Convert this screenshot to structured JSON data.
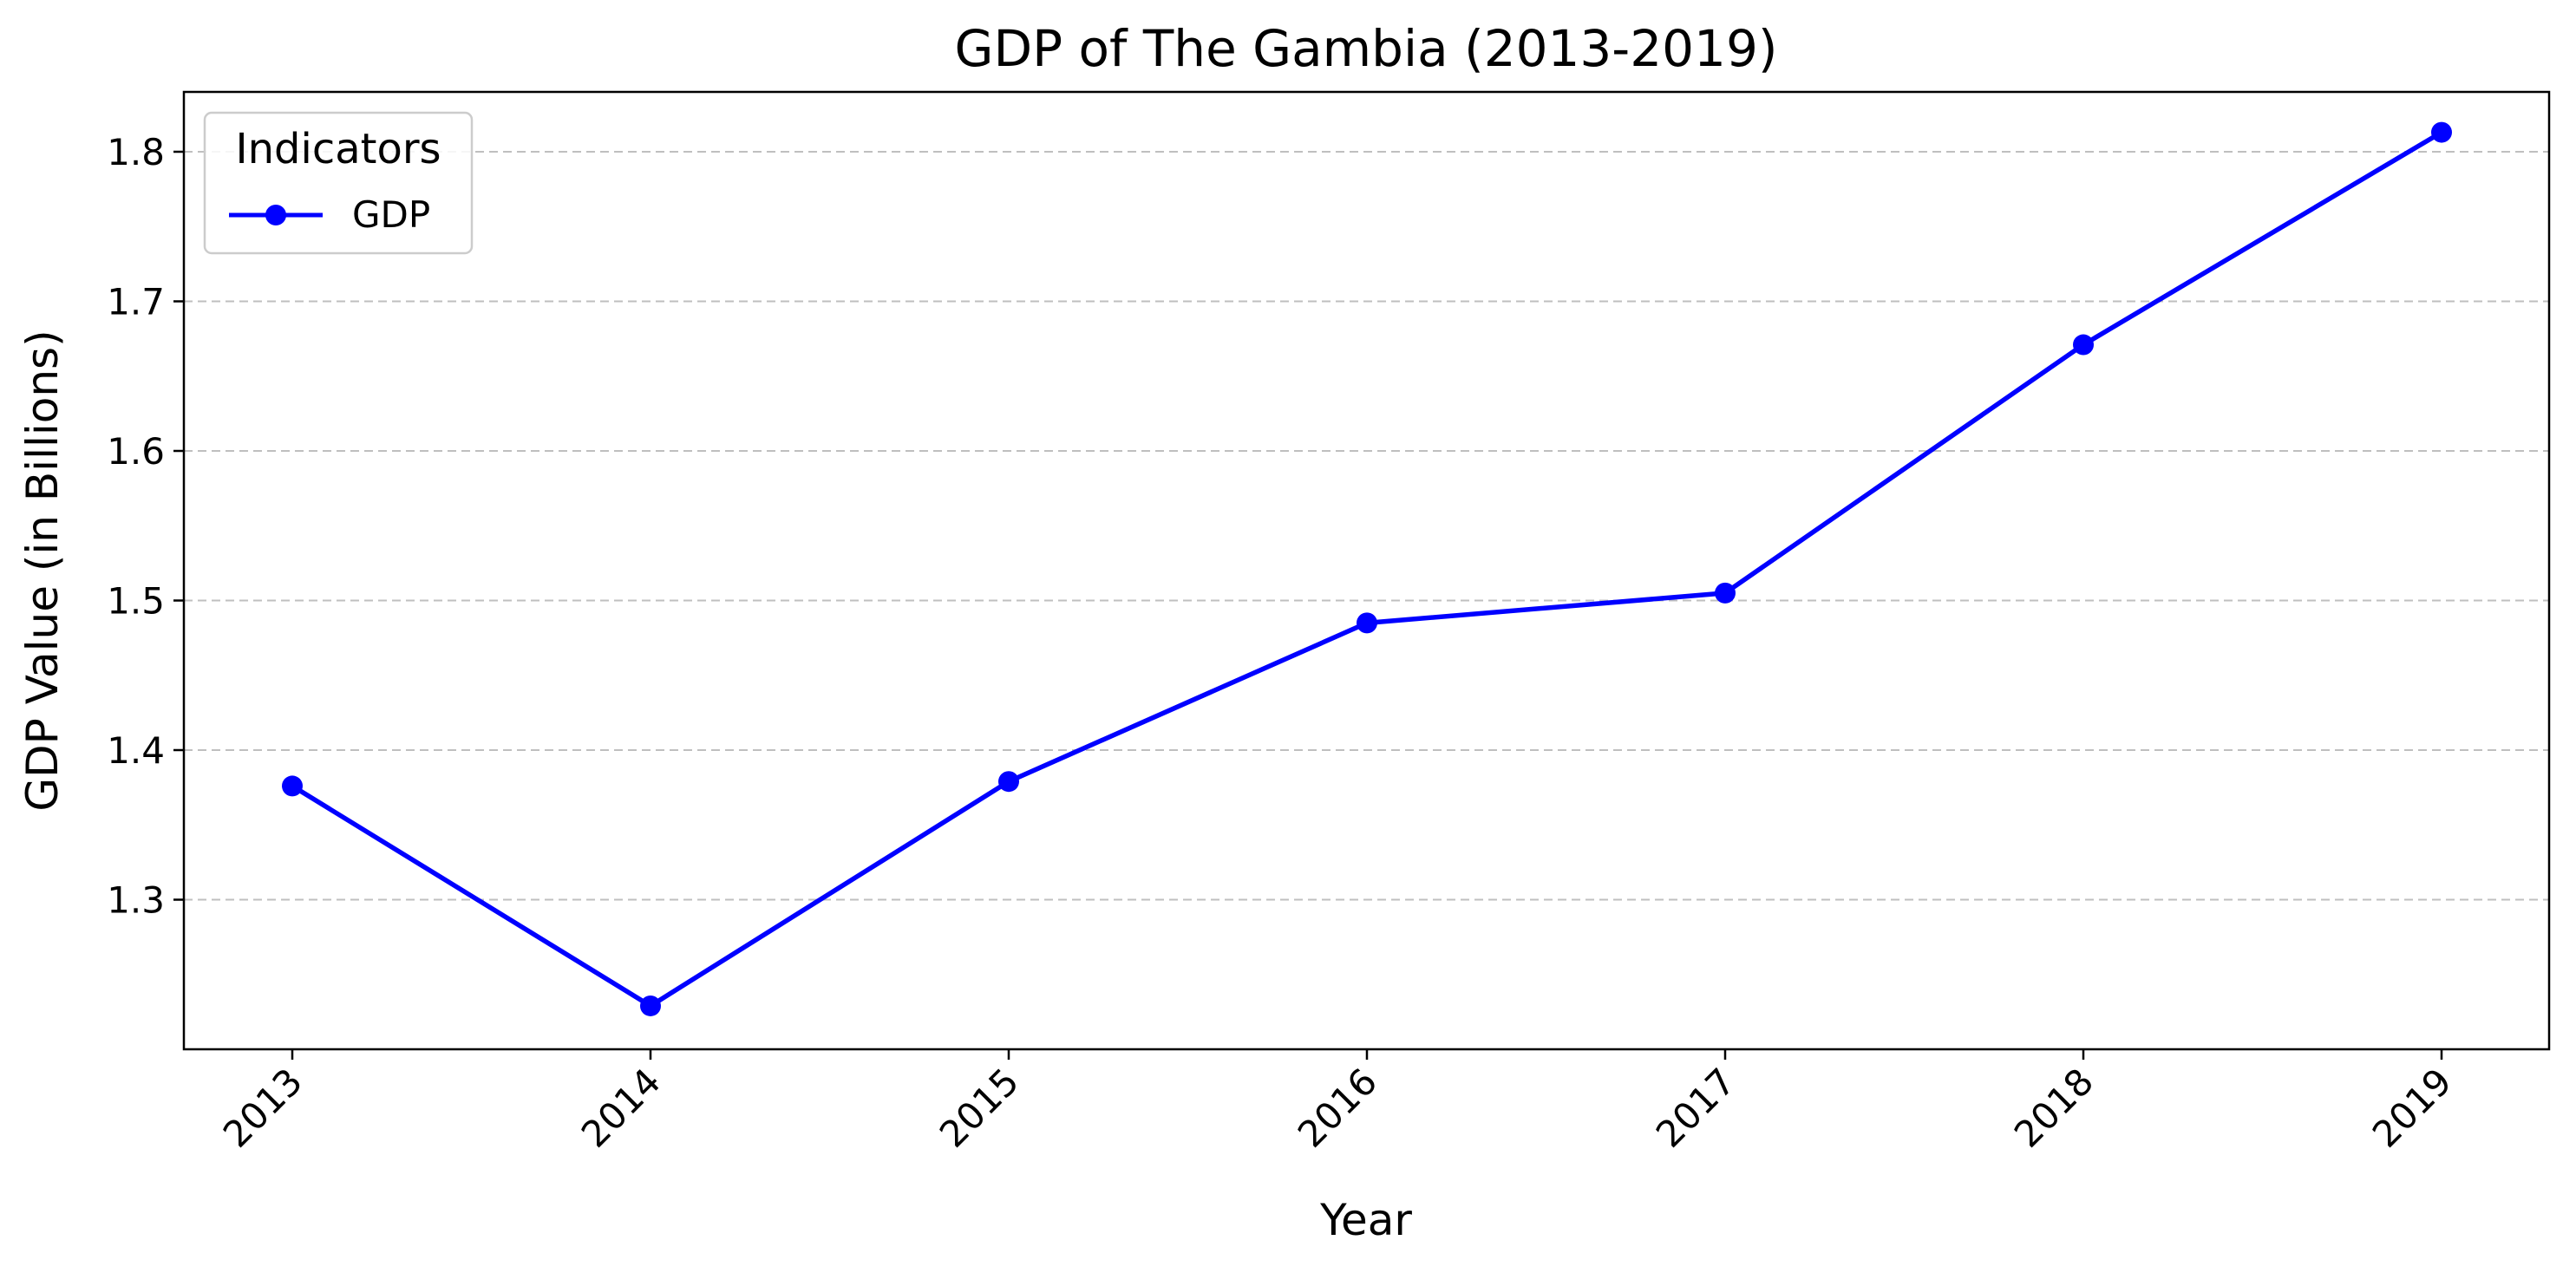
{
  "chart_data": {
    "type": "line",
    "title": "GDP of The Gambia (2013-2019)",
    "xlabel": "Year",
    "ylabel": "GDP Value (in Billions)",
    "categories": [
      "2013",
      "2014",
      "2015",
      "2016",
      "2017",
      "2018",
      "2019"
    ],
    "series": [
      {
        "name": "GDP",
        "color": "#0000ff",
        "values": [
          1.376,
          1.229,
          1.379,
          1.485,
          1.505,
          1.671,
          1.813
        ]
      }
    ],
    "ylim": [
      1.2,
      1.84
    ],
    "yticks": [
      "1.3",
      "1.4",
      "1.5",
      "1.6",
      "1.7",
      "1.8"
    ],
    "grid": "y-dashed",
    "legend": {
      "title": "Indicators",
      "placement": "top-left"
    }
  }
}
